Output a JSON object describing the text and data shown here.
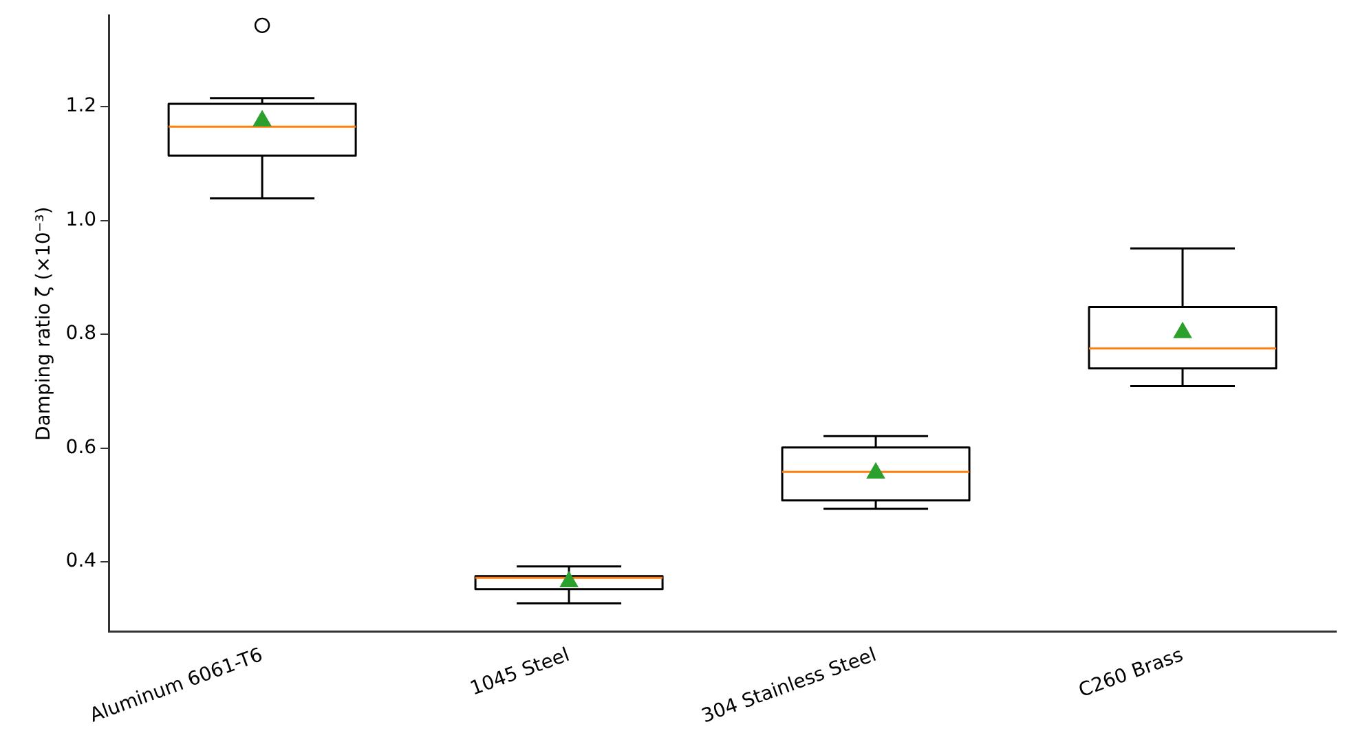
{
  "chart_data": {
    "type": "box",
    "ylabel": "Damping ratio ζ (×10⁻³)",
    "categories": [
      "Aluminum 6061-T6",
      "1045 Steel",
      "304 Stainless Steel",
      "C260 Brass"
    ],
    "boxes": [
      {
        "low": 1.039,
        "q1": 1.114,
        "median": 1.165,
        "q3": 1.205,
        "high": 1.215,
        "mean": 1.175,
        "outliers": [
          1.343
        ]
      },
      {
        "low": 0.327,
        "q1": 0.352,
        "median": 0.372,
        "q3": 0.375,
        "high": 0.392,
        "mean": 0.365
      },
      {
        "low": 0.493,
        "q1": 0.508,
        "median": 0.558,
        "q3": 0.601,
        "high": 0.621,
        "mean": 0.556
      },
      {
        "low": 0.709,
        "q1": 0.74,
        "median": 0.775,
        "q3": 0.848,
        "high": 0.951,
        "mean": 0.803
      }
    ],
    "ylim": [
      0.277,
      1.36
    ],
    "yticks": [
      0.4,
      0.6,
      0.8,
      {
        "value": 1.0,
        "label": "1.0"
      },
      1.2
    ],
    "grid": false,
    "legend": false
  }
}
